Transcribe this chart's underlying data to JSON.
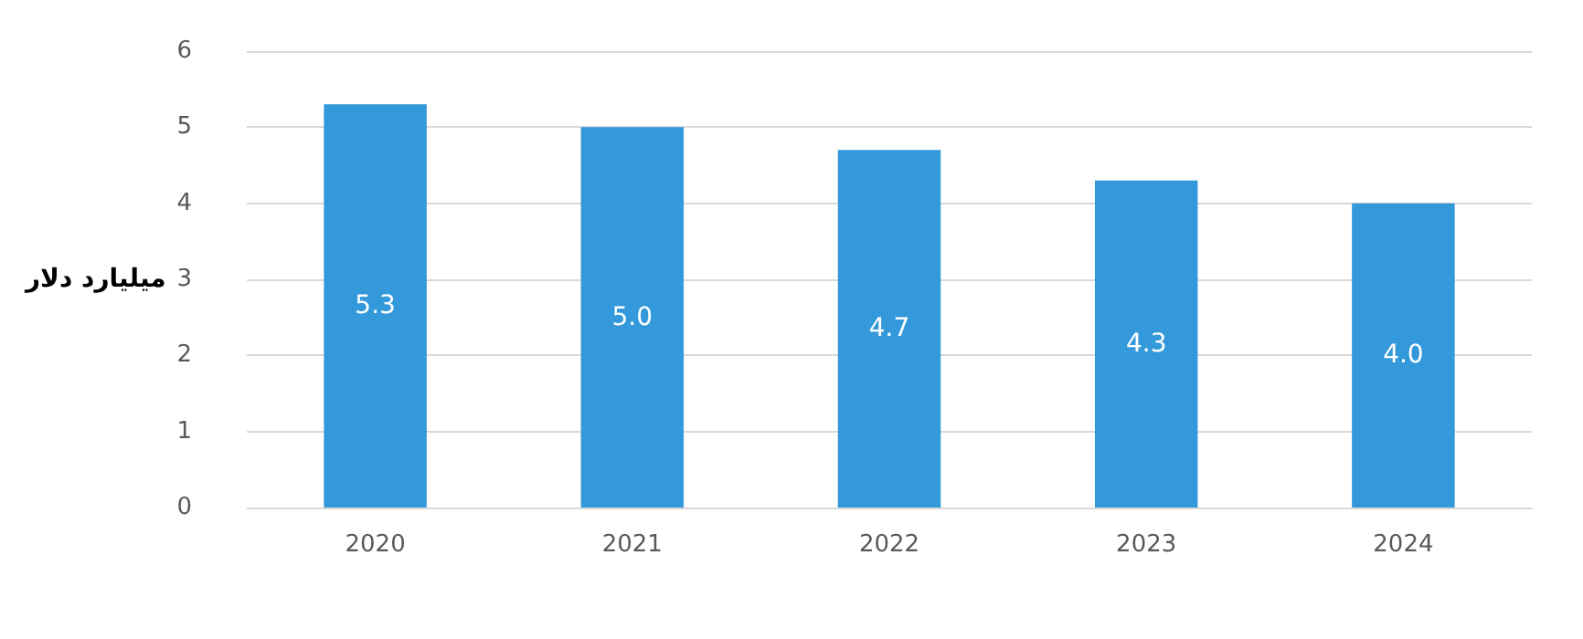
{
  "chart_data": {
    "type": "bar",
    "ylabel": "میلیارد دلار",
    "categories": [
      "2020",
      "2021",
      "2022",
      "2023",
      "2024"
    ],
    "values": [
      5.3,
      5.0,
      4.7,
      4.3,
      4.0
    ],
    "value_labels": [
      "5.3",
      "5.0",
      "4.7",
      "4.3",
      "4.0"
    ],
    "color": "#3399db",
    "ylim": [
      0,
      6
    ],
    "yticks": [
      0,
      1,
      2,
      3,
      4,
      5,
      6
    ],
    "grid": "y"
  }
}
